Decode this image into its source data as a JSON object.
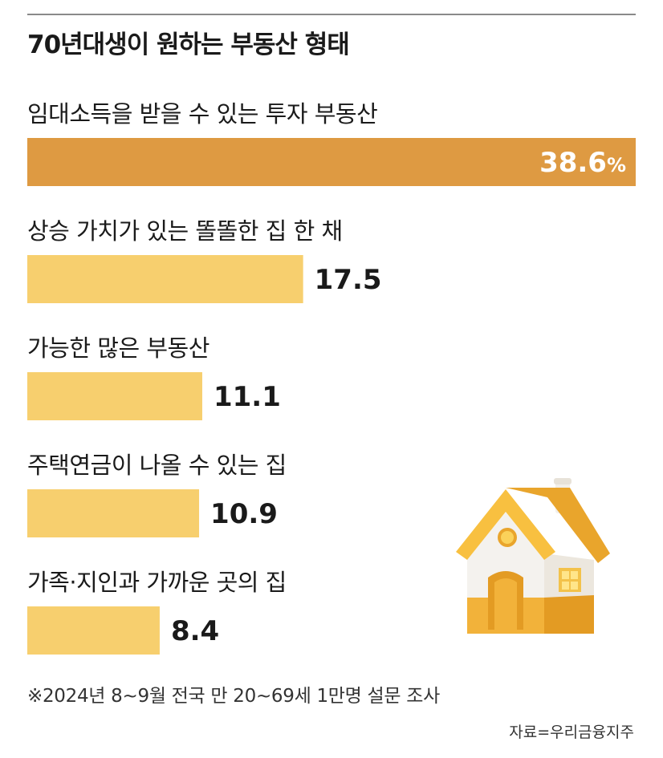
{
  "chart_data": {
    "type": "bar",
    "title": "70년대생이 원하는 부동산 형태",
    "categories": [
      "임대소득을 받을 수 있는 투자 부동산",
      "상승 가치가 있는 똘똘한 집 한 채",
      "가능한 많은 부동산",
      "주택연금이 나올 수 있는 집",
      "가족·지인과 가까운 곳의 집"
    ],
    "values": [
      38.6,
      17.5,
      11.1,
      10.9,
      8.4
    ],
    "value_labels": [
      "38.6%",
      "17.5",
      "11.1",
      "10.9",
      "8.4"
    ],
    "unit": "%",
    "xlim": [
      0,
      38.6
    ],
    "grid": false,
    "legend": "none",
    "colors": {
      "highlight": "#DE9A42",
      "bar": "#F7CF6E"
    }
  },
  "footnote": "※2024년 8~9월 전국 만 20~69세 1만명 설문 조사",
  "source": "자료=우리금융지주",
  "decoration": {
    "icon": "house-icon"
  }
}
